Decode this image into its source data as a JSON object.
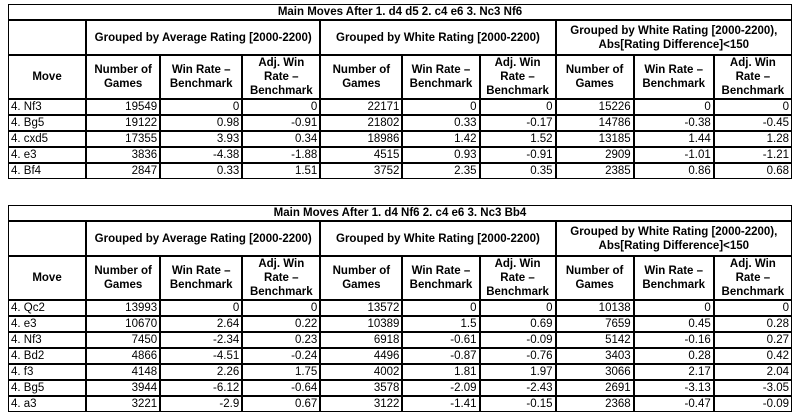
{
  "chart_data": [
    {
      "type": "table",
      "title": "Main Moves After 1. d4 d5 2. c4 e6 3. Nc3 Nf6",
      "move_header": "Move",
      "groups": [
        "Grouped by Average Rating [2000-2200)",
        "Grouped by White Rating [2000-2200)",
        "Grouped by White Rating [2000-2200), Abs[Rating Difference]<150"
      ],
      "sub_headers": [
        "Number of Games",
        "Win Rate – Benchmark",
        "Adj. Win Rate – Benchmark"
      ],
      "rows": [
        {
          "move": "4. Nf3",
          "values": [
            19549,
            0,
            0,
            22171,
            0,
            0,
            15226,
            0,
            0
          ]
        },
        {
          "move": "4. Bg5",
          "values": [
            19122,
            0.98,
            -0.91,
            21802,
            0.33,
            -0.17,
            14786,
            -0.38,
            -0.45
          ]
        },
        {
          "move": "4. cxd5",
          "values": [
            17355,
            3.93,
            0.34,
            18986,
            1.42,
            1.52,
            13185,
            1.44,
            1.28
          ]
        },
        {
          "move": "4. e3",
          "values": [
            3836,
            -4.38,
            -1.88,
            4515,
            0.93,
            -0.91,
            2909,
            -1.01,
            -1.21
          ]
        },
        {
          "move": "4. Bf4",
          "values": [
            2847,
            0.33,
            1.51,
            3752,
            2.35,
            0.35,
            2385,
            0.86,
            0.68
          ]
        }
      ]
    },
    {
      "type": "table",
      "title": "Main Moves After 1. d4 Nf6 2. c4 e6 3. Nc3 Bb4",
      "move_header": "Move",
      "groups": [
        "Grouped by Average Rating [2000-2200)",
        "Grouped by White Rating [2000-2200)",
        "Grouped by White Rating [2000-2200), Abs[Rating Difference]<150"
      ],
      "sub_headers": [
        "Number of Games",
        "Win Rate – Benchmark",
        "Adj. Win Rate – Benchmark"
      ],
      "rows": [
        {
          "move": "4. Qc2",
          "values": [
            13993,
            0,
            0,
            13572,
            0,
            0,
            10138,
            0,
            0
          ]
        },
        {
          "move": "4. e3",
          "values": [
            10670,
            2.64,
            0.22,
            10389,
            1.5,
            0.69,
            7659,
            0.45,
            0.28
          ]
        },
        {
          "move": "4. Nf3",
          "values": [
            7450,
            -2.34,
            0.23,
            6918,
            -0.61,
            -0.09,
            5142,
            -0.16,
            0.27
          ]
        },
        {
          "move": "4. Bd2",
          "values": [
            4866,
            -4.51,
            -0.24,
            4496,
            -0.87,
            -0.76,
            3403,
            0.28,
            0.42
          ]
        },
        {
          "move": "4. f3",
          "values": [
            4148,
            2.26,
            1.75,
            4002,
            1.81,
            1.97,
            3066,
            2.17,
            2.04
          ]
        },
        {
          "move": "4. Bg5",
          "values": [
            3944,
            -6.12,
            -0.64,
            3578,
            -2.09,
            -2.43,
            2691,
            -3.13,
            -3.05
          ]
        },
        {
          "move": "4. a3",
          "values": [
            3221,
            -2.9,
            0.67,
            3122,
            -1.41,
            -0.15,
            2368,
            -0.47,
            -0.09
          ]
        }
      ]
    }
  ],
  "colors": {
    "background": "#ffffff",
    "border": "#000000",
    "text": "#000000"
  }
}
